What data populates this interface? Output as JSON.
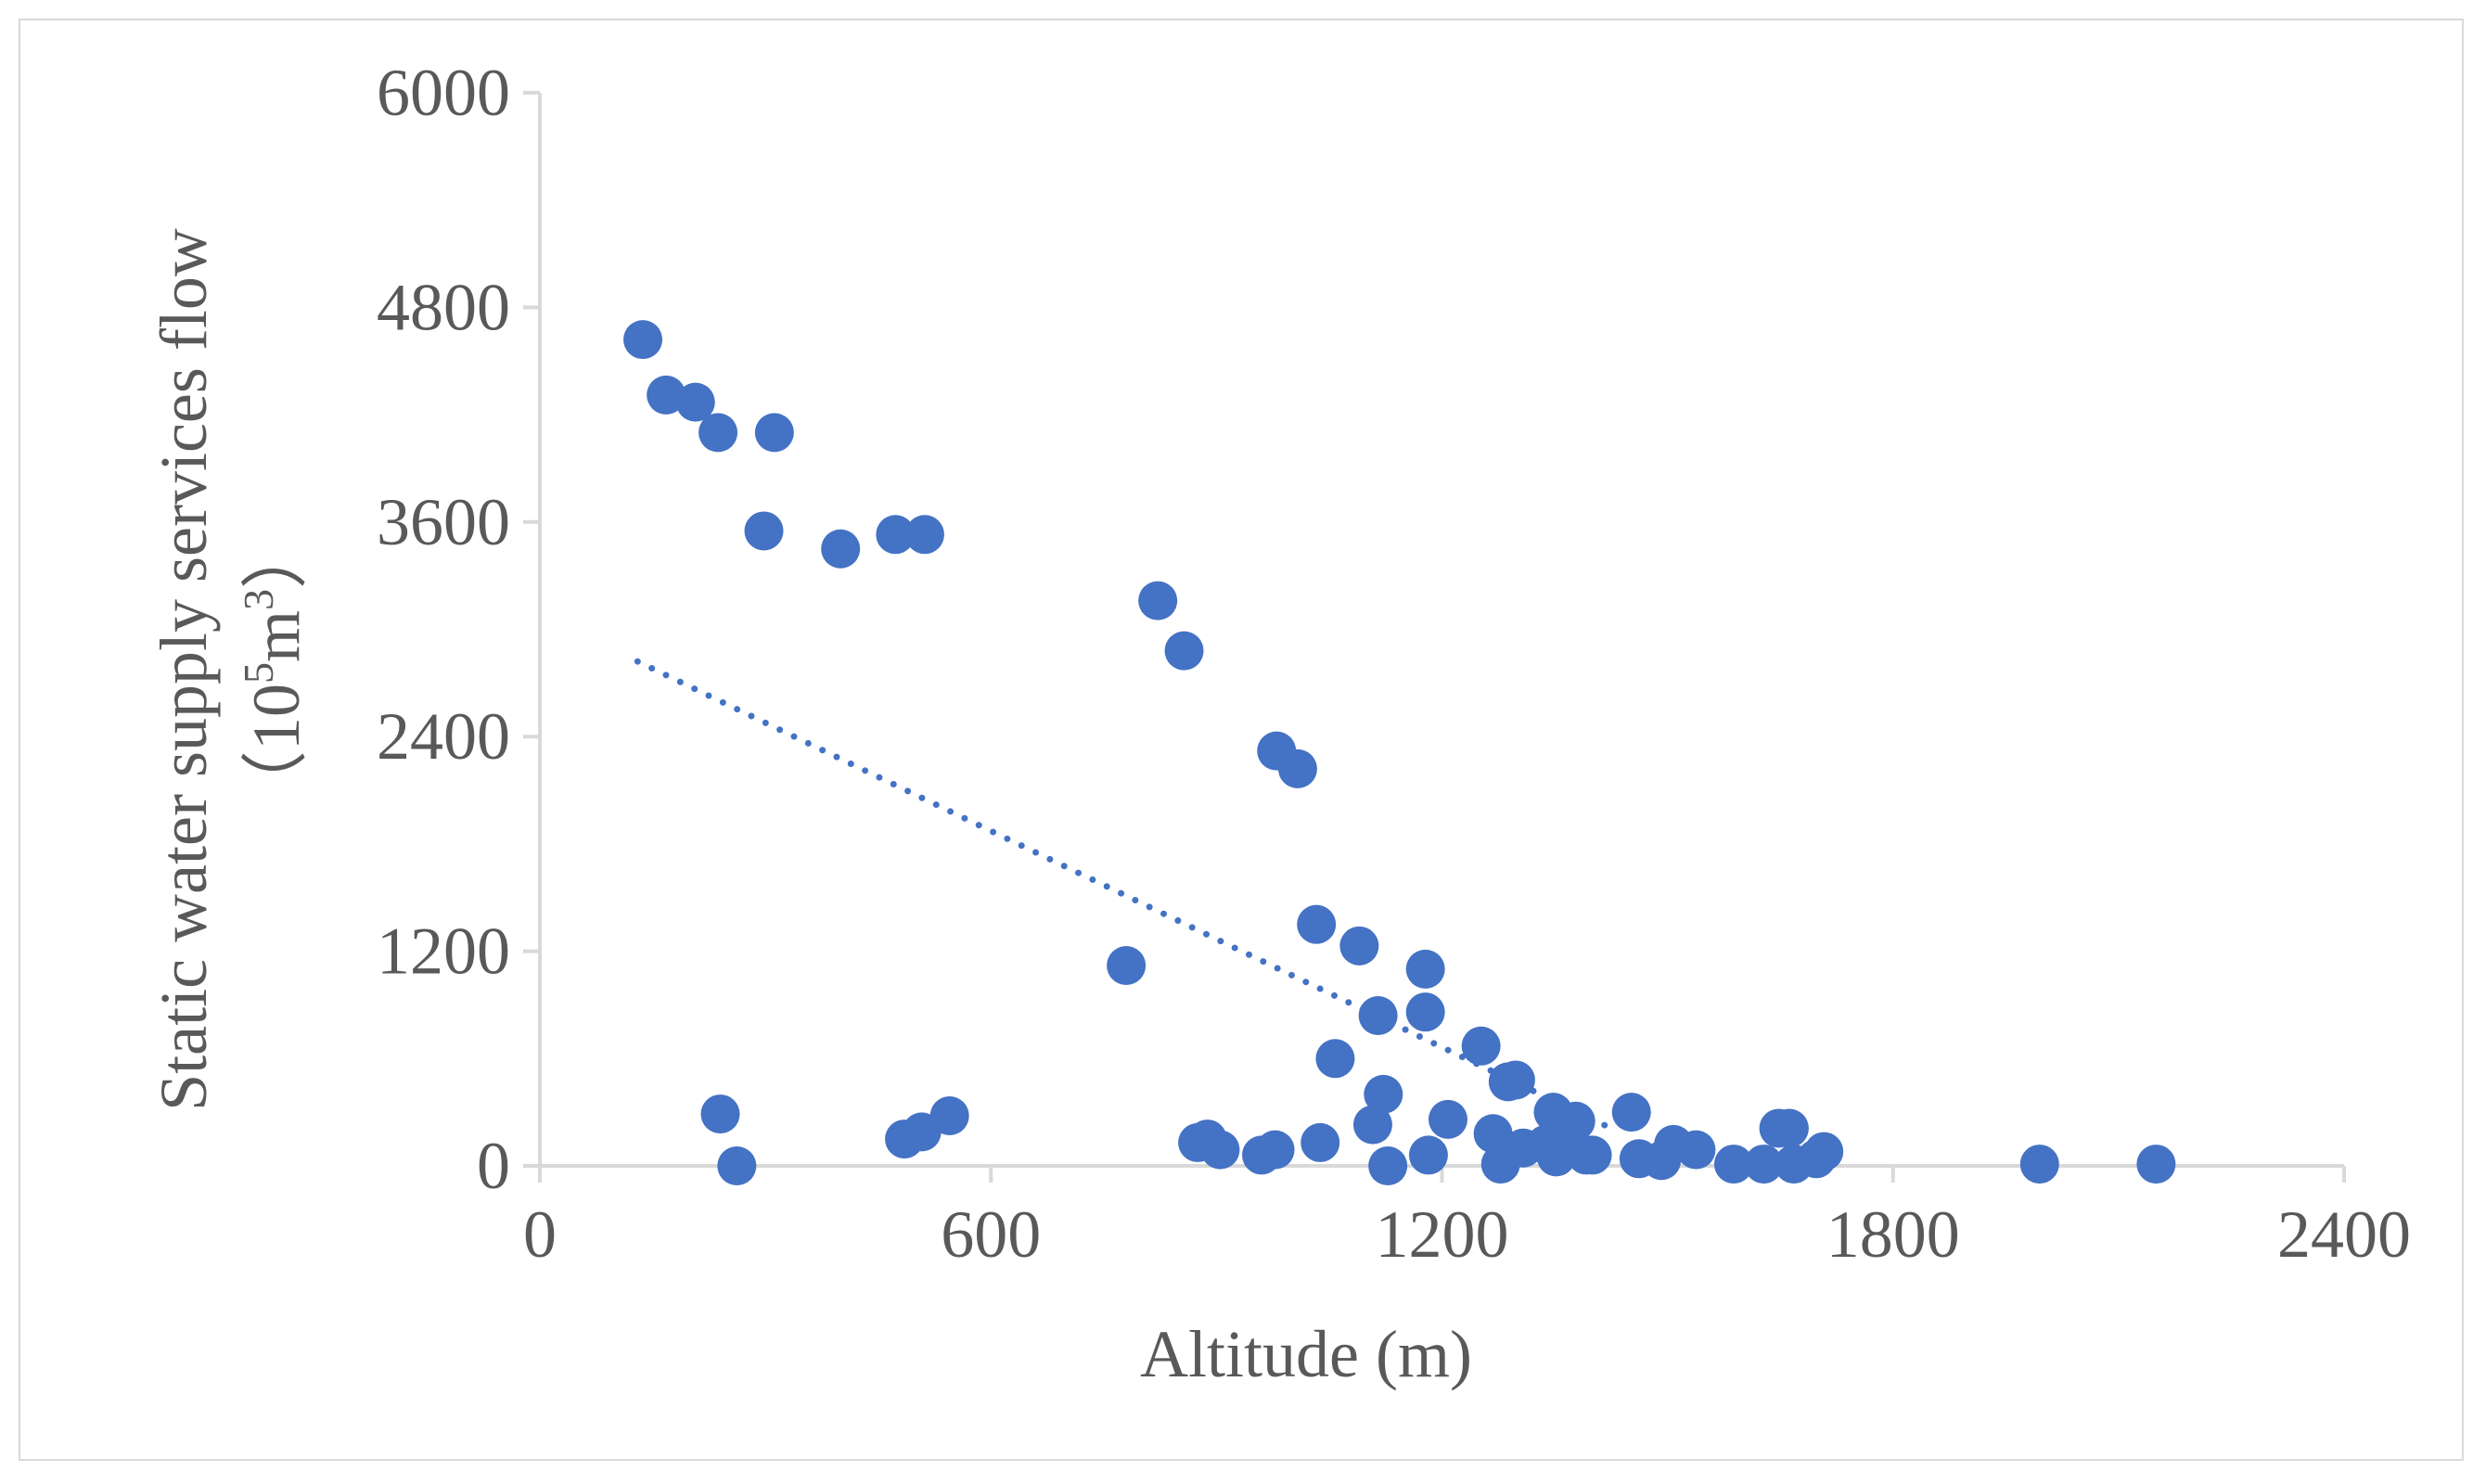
{
  "chart_data": {
    "type": "scatter",
    "xlabel": "Altitude (m)",
    "ylabel": "Static water supply services flow",
    "ylabel_unit": {
      "base": "（10",
      "exp1": "5",
      "mid": "m",
      "exp2": "3",
      "end": "）"
    },
    "xlim": [
      0,
      2400
    ],
    "ylim": [
      0,
      6000
    ],
    "xticks": [
      "0",
      "600",
      "1200",
      "1800",
      "2400"
    ],
    "yticks": [
      "0",
      "1200",
      "2400",
      "3600",
      "4800",
      "6000"
    ],
    "grid": false,
    "legend": "none",
    "marker_color": "#4472c4",
    "trendline": {
      "style": "dotted",
      "x": [
        130,
        1430
      ],
      "y": [
        2820,
        200
      ]
    },
    "series": [
      {
        "x": [
          137,
          168,
          207,
          237,
          312,
          298,
          400,
          473,
          512,
          240,
          262,
          485,
          508,
          545,
          780,
          822,
          857,
          875,
          888,
          905,
          960,
          980,
          978,
          1008,
          1033,
          1038,
          1058,
          1108,
          1090,
          1115,
          1122,
          1128,
          1178,
          1178,
          1182,
          1208,
          1252,
          1268,
          1288,
          1278,
          1298,
          1308,
          1338,
          1348,
          1352,
          1368,
          1378,
          1392,
          1400,
          1452,
          1462,
          1492,
          1508,
          1538,
          1588,
          1628,
          1648,
          1662,
          1668,
          1698,
          1708,
          1995,
          2150
        ],
        "y": [
          4620,
          4310,
          4270,
          4100,
          4100,
          3550,
          3450,
          3530,
          3530,
          290,
          0,
          150,
          190,
          280,
          1120,
          3160,
          2880,
          130,
          150,
          90,
          60,
          2320,
          90,
          2220,
          1350,
          130,
          600,
          230,
          1230,
          840,
          400,
          0,
          1100,
          860,
          60,
          260,
          670,
          180,
          470,
          10,
          480,
          100,
          120,
          300,
          50,
          160,
          250,
          60,
          60,
          300,
          40,
          30,
          120,
          90,
          10,
          10,
          210,
          210,
          10,
          40,
          80,
          10,
          10
        ]
      }
    ]
  }
}
